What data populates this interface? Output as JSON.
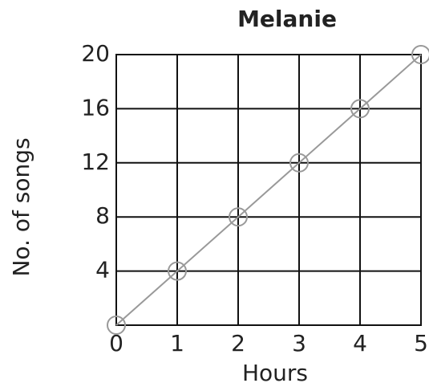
{
  "chart_data": {
    "type": "line",
    "title": "Melanie",
    "x_label": "Hours",
    "y_label": "No. of songs",
    "x": [
      0,
      1,
      2,
      3,
      4,
      5
    ],
    "series": [
      {
        "name": "Melanie",
        "color": "#999999",
        "values": [
          0,
          4,
          8,
          12,
          16,
          20
        ]
      }
    ],
    "xlim": [
      0,
      5
    ],
    "xticks": [
      0,
      1,
      2,
      3,
      4,
      5
    ],
    "ylim": [
      0,
      20
    ],
    "yticks": [
      4,
      8,
      12,
      16,
      20
    ],
    "grid": true
  }
}
